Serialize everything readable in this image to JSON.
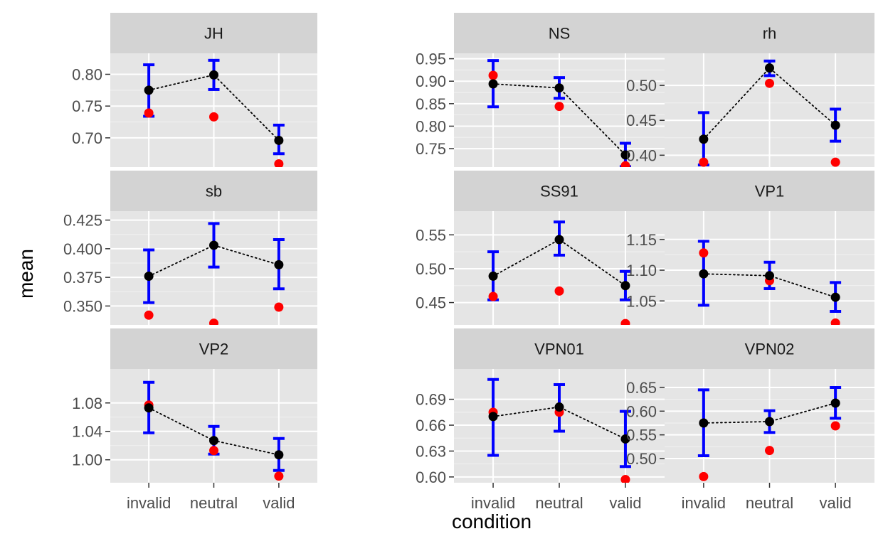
{
  "chart_data": {
    "type": "scatter",
    "layout": "facet-grid 3x3",
    "xlabel": "condition",
    "ylabel": "mean",
    "categories": [
      "invalid",
      "neutral",
      "valid"
    ],
    "colors": {
      "errorbar": "#0000ff",
      "mean_point": "#000000",
      "red_point": "#ff0000",
      "strip": "#d3d3d3",
      "panel": "#e5e5e5"
    },
    "panels": [
      {
        "title": "JH",
        "ylim": [
          0.654,
          0.833
        ],
        "ticks": [
          0.7,
          0.75,
          0.8
        ],
        "tick_labels": [
          "0.70",
          "0.75",
          "0.80"
        ],
        "mean": [
          0.775,
          0.799,
          0.696
        ],
        "lower": [
          0.734,
          0.776,
          0.675
        ],
        "upper": [
          0.815,
          0.822,
          0.72
        ],
        "red": [
          0.739,
          0.733,
          0.659
        ]
      },
      {
        "title": "NS",
        "ylim": [
          0.709,
          0.962
        ],
        "ticks": [
          0.75,
          0.8,
          0.85,
          0.9,
          0.95
        ],
        "tick_labels": [
          "0.75",
          "0.80",
          "0.85",
          "0.90",
          "0.95"
        ],
        "mean": [
          0.894,
          0.885,
          0.736
        ],
        "lower": [
          0.843,
          0.862,
          0.71
        ],
        "upper": [
          0.946,
          0.908,
          0.762
        ],
        "red": [
          0.913,
          0.844,
          0.712
        ]
      },
      {
        "title": "rh",
        "ylim": [
          0.383,
          0.546
        ],
        "ticks": [
          0.4,
          0.45,
          0.5
        ],
        "tick_labels": [
          "0.40",
          "0.45",
          "0.50"
        ],
        "mean": [
          0.423,
          0.525,
          0.443
        ],
        "lower": [
          0.386,
          0.514,
          0.42
        ],
        "upper": [
          0.461,
          0.535,
          0.466
        ],
        "red": [
          0.39,
          0.503,
          0.39
        ]
      },
      {
        "title": "sb",
        "ylim": [
          0.3335,
          0.4328
        ],
        "ticks": [
          0.35,
          0.375,
          0.4,
          0.425
        ],
        "tick_labels": [
          "0.350",
          "0.375",
          "0.400",
          "0.425"
        ],
        "mean": [
          0.376,
          0.403,
          0.386
        ],
        "lower": [
          0.353,
          0.384,
          0.365
        ],
        "upper": [
          0.399,
          0.422,
          0.408
        ],
        "red": [
          0.342,
          0.335,
          0.349
        ]
      },
      {
        "title": "SS91",
        "ylim": [
          0.417,
          0.585
        ],
        "ticks": [
          0.45,
          0.5,
          0.55
        ],
        "tick_labels": [
          "0.45",
          "0.50",
          "0.55"
        ],
        "mean": [
          0.489,
          0.543,
          0.475
        ],
        "lower": [
          0.454,
          0.52,
          0.454
        ],
        "upper": [
          0.525,
          0.569,
          0.496
        ],
        "red": [
          0.459,
          0.467,
          0.419
        ]
      },
      {
        "title": "VP1",
        "ylim": [
          1.011,
          1.196
        ],
        "ticks": [
          1.05,
          1.1,
          1.15
        ],
        "tick_labels": [
          "1.05",
          "1.10",
          "1.15"
        ],
        "mean": [
          1.094,
          1.091,
          1.056
        ],
        "lower": [
          1.043,
          1.07,
          1.033
        ],
        "upper": [
          1.147,
          1.113,
          1.08
        ],
        "red": [
          1.128,
          1.083,
          1.014
        ]
      },
      {
        "title": "VP2",
        "ylim": [
          0.9677,
          1.1278
        ],
        "ticks": [
          1.0,
          1.04,
          1.08
        ],
        "tick_labels": [
          "1.00",
          "1.04",
          "1.08"
        ],
        "mean": [
          1.073,
          1.027,
          1.007
        ],
        "lower": [
          1.038,
          1.008,
          0.985
        ],
        "upper": [
          1.109,
          1.047,
          1.03
        ],
        "red": [
          1.077,
          1.013,
          0.977
        ]
      },
      {
        "title": "VPN01",
        "ylim": [
          0.5933,
          0.7251
        ],
        "ticks": [
          0.6,
          0.63,
          0.66,
          0.69
        ],
        "tick_labels": [
          "0.60",
          "0.63",
          "0.66",
          "0.69"
        ],
        "mean": [
          0.67,
          0.681,
          0.644
        ],
        "lower": [
          0.625,
          0.653,
          0.612
        ],
        "upper": [
          0.713,
          0.707,
          0.676
        ],
        "red": [
          0.675,
          0.675,
          0.597
        ]
      },
      {
        "title": "VPN02",
        "ylim": [
          0.449,
          0.689
        ],
        "ticks": [
          0.5,
          0.55,
          0.6,
          0.65
        ],
        "tick_labels": [
          "0.50",
          "0.55",
          "0.60",
          "0.65"
        ],
        "mean": [
          0.575,
          0.578,
          0.617
        ],
        "lower": [
          0.506,
          0.555,
          0.585
        ],
        "upper": [
          0.645,
          0.601,
          0.65
        ],
        "red": [
          0.462,
          0.517,
          0.569
        ]
      }
    ]
  }
}
